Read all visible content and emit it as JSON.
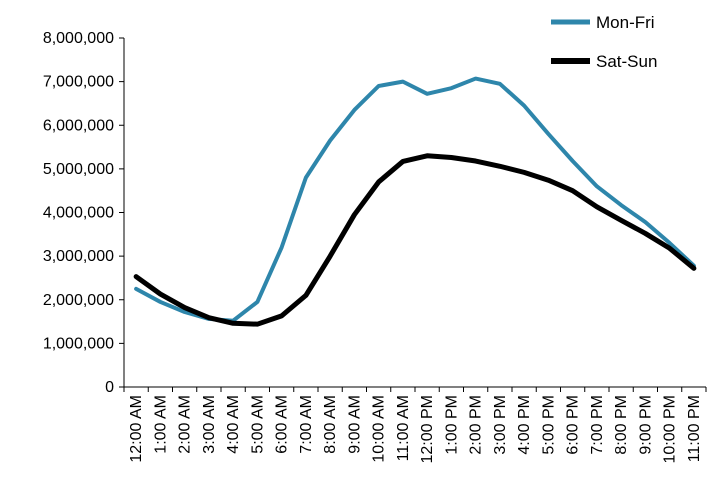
{
  "chart_data": {
    "type": "line",
    "title": "",
    "xlabel": "",
    "ylabel": "",
    "ylim": [
      0,
      8000000
    ],
    "yticks": [
      {
        "value": 0,
        "label": "0"
      },
      {
        "value": 1000000,
        "label": "1,000,000"
      },
      {
        "value": 2000000,
        "label": "2,000,000"
      },
      {
        "value": 3000000,
        "label": "3,000,000"
      },
      {
        "value": 4000000,
        "label": "4,000,000"
      },
      {
        "value": 5000000,
        "label": "5,000,000"
      },
      {
        "value": 6000000,
        "label": "6,000,000"
      },
      {
        "value": 7000000,
        "label": "7,000,000"
      },
      {
        "value": 8000000,
        "label": "8,000,000"
      }
    ],
    "categories": [
      "12:00 AM",
      "1:00 AM",
      "2:00 AM",
      "3:00 AM",
      "4:00 AM",
      "5:00 AM",
      "6:00 AM",
      "7:00 AM",
      "8:00 AM",
      "9:00 AM",
      "10:00 AM",
      "11:00 AM",
      "12:00 PM",
      "1:00 PM",
      "2:00 PM",
      "3:00 PM",
      "4:00 PM",
      "5:00 PM",
      "6:00 PM",
      "7:00 PM",
      "8:00 PM",
      "9:00 PM",
      "10:00 PM",
      "11:00 PM"
    ],
    "grid": false,
    "legend_position": "top-right",
    "series": [
      {
        "name": "Mon-Fri",
        "color": "#2e86ab",
        "values": [
          2250000,
          1950000,
          1720000,
          1560000,
          1520000,
          1950000,
          3200000,
          4800000,
          5650000,
          6350000,
          6900000,
          7000000,
          6720000,
          6850000,
          7070000,
          6950000,
          6450000,
          5800000,
          5180000,
          4600000,
          4170000,
          3780000,
          3300000,
          2780000
        ]
      },
      {
        "name": "Sat-Sun",
        "color": "#000000",
        "values": [
          2530000,
          2130000,
          1820000,
          1590000,
          1460000,
          1440000,
          1630000,
          2100000,
          3000000,
          3950000,
          4700000,
          5170000,
          5300000,
          5260000,
          5180000,
          5060000,
          4920000,
          4740000,
          4500000,
          4130000,
          3820000,
          3520000,
          3180000,
          2720000
        ]
      }
    ]
  }
}
